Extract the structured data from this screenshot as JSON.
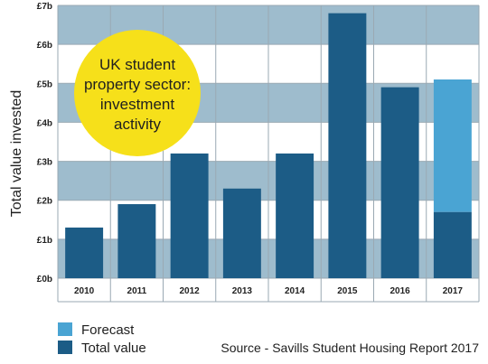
{
  "chart_data": {
    "type": "bar",
    "stacked": true,
    "categories": [
      "2010",
      "2011",
      "2012",
      "2013",
      "2014",
      "2015",
      "2016",
      "2017"
    ],
    "series": [
      {
        "name": "Total value",
        "color": "#1c5c86",
        "values": [
          1.3,
          1.9,
          3.2,
          2.3,
          3.2,
          6.8,
          4.9,
          1.7
        ]
      },
      {
        "name": "Forecast",
        "color": "#4aa4d3",
        "values": [
          0,
          0,
          0,
          0,
          0,
          0,
          0,
          3.4
        ]
      }
    ],
    "ylabel": "Total value invested",
    "ylim": [
      0,
      7
    ],
    "y_ticks": [
      "£0b",
      "£1b",
      "£2b",
      "£3b",
      "£4b",
      "£5b",
      "£6b",
      "£7b"
    ],
    "grid": true,
    "band_colors": [
      "#9ebccd",
      "#ffffff"
    ],
    "legend_position": "bottom-left",
    "annotation": {
      "lines": [
        "UK student",
        "property sector:",
        "investment",
        "activity"
      ],
      "color": "#f6e01a"
    },
    "source": "Source - Savills Student Housing Report 2017"
  }
}
